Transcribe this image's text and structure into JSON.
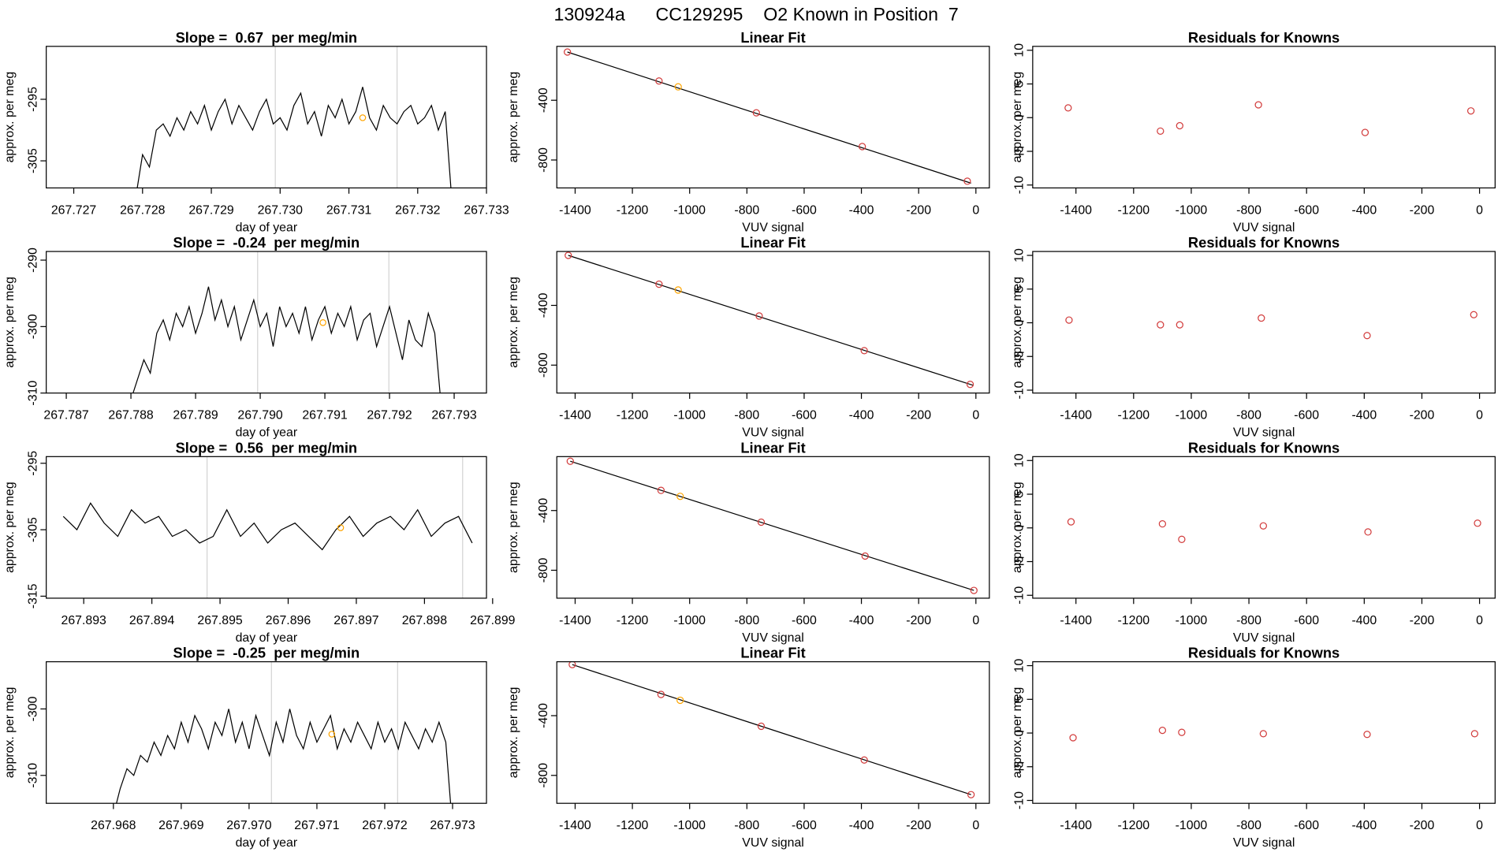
{
  "title": "130924a      CC129295    O2 Known in Position  7",
  "chart_data": [
    {
      "type": "line",
      "title": "Slope =  0.67  per meg/min",
      "xlabel": "day of year",
      "ylabel": "approx. per meg",
      "x": [
        267.7279,
        267.728,
        267.7281,
        267.7282,
        267.7283,
        267.7284,
        267.7285,
        267.7286,
        267.7287,
        267.7288,
        267.7289,
        267.729,
        267.7291,
        267.7292,
        267.7293,
        267.7294,
        267.7295,
        267.7296,
        267.7297,
        267.7298,
        267.7299,
        267.73,
        267.7301,
        267.7302,
        267.7303,
        267.7304,
        267.7305,
        267.7306,
        267.7307,
        267.7308,
        267.7309,
        267.731,
        267.7311,
        267.7312,
        267.7313,
        267.7314,
        267.7315,
        267.7316,
        267.7317,
        267.7318,
        267.7319,
        267.732,
        267.7321,
        267.7322,
        267.7323,
        267.7324,
        267.7325
      ],
      "values": [
        -311,
        -304,
        -306,
        -300,
        -299,
        -301,
        -298,
        -300,
        -297,
        -299,
        -296,
        -300,
        -297,
        -295,
        -299,
        -296,
        -298,
        -300,
        -297,
        -295,
        -299,
        -298,
        -300,
        -296,
        -294,
        -299,
        -297,
        -301,
        -296,
        -298,
        -295,
        -299,
        -297,
        -293,
        -298,
        -300,
        -296,
        -298,
        -299,
        -297,
        -296,
        -299,
        -298,
        -296,
        -300,
        -297,
        -312
      ],
      "color": "#000000",
      "xlim": [
        267.7266,
        267.733
      ],
      "ylim": [
        -309.4,
        -286.4
      ],
      "xticks": [
        267.727,
        267.728,
        267.729,
        {
          "value": 267.73,
          "label": "267.730"
        },
        267.731,
        267.732,
        267.733
      ],
      "yticks": [
        -305,
        -295
      ],
      "vlines": [
        267.72993,
        267.7317
      ],
      "vline_color": "#d3d3d3",
      "highlight": {
        "x": 267.7312,
        "value": -298,
        "color": "#ffa500"
      }
    },
    {
      "type": "scatter",
      "title": "Linear Fit",
      "xlabel": "VUV signal",
      "ylabel": "approx. per meg",
      "x": [
        -1427,
        -1107,
        -1040,
        -767,
        -397,
        -30
      ],
      "values": [
        -77,
        -271,
        -310,
        -484,
        -710,
        -942
      ],
      "colors": [
        "#d23c3c",
        "#d23c3c",
        "#ffa500",
        "#d23c3c",
        "#d23c3c",
        "#d23c3c"
      ],
      "fit": {
        "x": [
          -1427,
          -17
        ],
        "values": [
          -77,
          -955
        ]
      },
      "xlim": [
        -1464,
        47
      ],
      "ylim": [
        -987,
        -39
      ],
      "xticks": [
        -1400,
        -1200,
        -1000,
        -800,
        -600,
        -400,
        -200,
        0
      ],
      "yticks": [
        -800,
        -400
      ]
    },
    {
      "type": "scatter",
      "title": "Residuals for Knowns",
      "xlabel": "VUV signal",
      "ylabel": "approx. per meg",
      "x": [
        -1427,
        -1107,
        -1040,
        -767,
        -397,
        -30
      ],
      "values": [
        1.45,
        -2.0,
        -1.2,
        1.9,
        -2.2,
        1.0
      ],
      "colors": [
        "#d23c3c",
        "#d23c3c",
        "#d23c3c",
        "#d23c3c",
        "#d23c3c",
        "#d23c3c"
      ],
      "xlim": [
        -1550,
        54
      ],
      "ylim": [
        -10.43,
        10.58
      ],
      "xticks": [
        -1400,
        -1200,
        -1000,
        -800,
        -600,
        -400,
        -200,
        0
      ],
      "yticks": [
        -10,
        -5,
        0,
        5,
        10
      ]
    },
    {
      "type": "line",
      "title": "Slope =  -0.24  per meg/min",
      "xlabel": "day of year",
      "ylabel": "approx. per meg",
      "x": [
        267.788,
        267.7881,
        267.7882,
        267.7883,
        267.7884,
        267.7885,
        267.7886,
        267.7887,
        267.7888,
        267.7889,
        267.789,
        267.7891,
        267.7892,
        267.7893,
        267.7894,
        267.7895,
        267.7896,
        267.7897,
        267.7898,
        267.7899,
        267.79,
        267.7901,
        267.7902,
        267.7903,
        267.7904,
        267.7905,
        267.7906,
        267.7907,
        267.7908,
        267.7909,
        267.791,
        267.7911,
        267.7912,
        267.7913,
        267.7914,
        267.7915,
        267.7916,
        267.7917,
        267.7918,
        267.7919,
        267.792,
        267.7921,
        267.7922,
        267.7923,
        267.7924,
        267.7925,
        267.7926,
        267.7927,
        267.7928
      ],
      "values": [
        -311,
        -308,
        -305,
        -307,
        -301,
        -299,
        -302,
        -298,
        -300,
        -297,
        -301,
        -298,
        -294,
        -299,
        -296,
        -300,
        -297,
        -302,
        -299,
        -296,
        -300,
        -298,
        -303,
        -297,
        -300,
        -298,
        -301,
        -297,
        -302,
        -299,
        -297,
        -301,
        -298,
        -300,
        -297,
        -302,
        -299,
        -298,
        -303,
        -300,
        -297,
        -301,
        -305,
        -299,
        -302,
        -303,
        -298,
        -301,
        -312
      ],
      "color": "#000000",
      "xlim": [
        267.78669,
        267.7935
      ],
      "ylim": [
        -310,
        -288.7
      ],
      "xticks": [
        267.787,
        267.788,
        267.789,
        {
          "value": 267.79,
          "label": "267.790"
        },
        267.791,
        267.792,
        267.793
      ],
      "yticks": [
        -310,
        -300,
        -290
      ],
      "vlines": [
        267.78996,
        267.79199
      ],
      "vline_color": "#d3d3d3",
      "highlight": {
        "x": 267.79097,
        "value": -299.4,
        "color": "#ffa500"
      }
    },
    {
      "type": "scatter",
      "title": "Linear Fit",
      "xlabel": "VUV signal",
      "ylabel": "approx. per meg",
      "x": [
        -1424,
        -1107,
        -1040,
        -757,
        -390,
        -20
      ],
      "values": [
        -65,
        -258,
        -297,
        -471,
        -703,
        -929
      ],
      "colors": [
        "#d23c3c",
        "#d23c3c",
        "#ffa500",
        "#d23c3c",
        "#d23c3c",
        "#d23c3c"
      ],
      "fit": {
        "x": [
          -1424,
          -10
        ],
        "values": [
          -65,
          -935
        ]
      },
      "xlim": [
        -1464,
        47
      ],
      "ylim": [
        -987,
        -39
      ],
      "xticks": [
        -1400,
        -1200,
        -1000,
        -800,
        -600,
        -400,
        -200,
        0
      ],
      "yticks": [
        -800,
        -400
      ]
    },
    {
      "type": "scatter",
      "title": "Residuals for Knowns",
      "xlabel": "VUV signal",
      "ylabel": "approx. per meg",
      "x": [
        -1424,
        -1107,
        -1040,
        -757,
        -390,
        -20
      ],
      "values": [
        0.4,
        -0.3,
        -0.3,
        0.7,
        -1.9,
        1.2
      ],
      "colors": [
        "#d23c3c",
        "#d23c3c",
        "#d23c3c",
        "#d23c3c",
        "#d23c3c",
        "#d23c3c"
      ],
      "xlim": [
        -1550,
        54
      ],
      "ylim": [
        -10.43,
        10.58
      ],
      "xticks": [
        -1400,
        -1200,
        -1000,
        -800,
        -600,
        -400,
        -200,
        0
      ],
      "yticks": [
        -10,
        -5,
        0,
        5,
        10
      ]
    },
    {
      "type": "line",
      "title": "Slope =  0.56  per meg/min",
      "xlabel": "day of year",
      "ylabel": "approx. per meg",
      "x": [
        267.8927,
        267.8929,
        267.8931,
        267.8933,
        267.8935,
        267.8937,
        267.8939,
        267.8941,
        267.8943,
        267.8945,
        267.8947,
        267.8949,
        267.8951,
        267.8953,
        267.8955,
        267.8957,
        267.8959,
        267.8961,
        267.8963,
        267.8965,
        267.8967,
        267.8969,
        267.8971,
        267.8973,
        267.8975,
        267.8977,
        267.8979,
        267.8981,
        267.8983,
        267.8985,
        267.8987
      ],
      "values": [
        -303,
        -305,
        -301,
        -304,
        -306,
        -302,
        -304,
        -303,
        -306,
        -305,
        -307,
        -306,
        -302,
        -306,
        -304,
        -307,
        -305,
        -304,
        -306,
        -308,
        -305,
        -303,
        -306,
        -304,
        -303,
        -305,
        -302,
        -306,
        -304,
        -303,
        -307
      ],
      "color": "#000000",
      "xlim": [
        267.89245,
        267.89891
      ],
      "ylim": [
        -315.3,
        -294
      ],
      "xticks": [
        267.893,
        267.894,
        267.895,
        267.896,
        267.897,
        267.898,
        267.899
      ],
      "yticks": [
        -315,
        -305,
        -295
      ],
      "vlines": [
        267.89481,
        267.89856
      ],
      "vline_color": "#d3d3d3",
      "highlight": {
        "x": 267.89677,
        "value": -304.7,
        "color": "#ffa500"
      }
    },
    {
      "type": "scatter",
      "title": "Linear Fit",
      "xlabel": "VUV signal",
      "ylabel": "approx. per meg",
      "x": [
        -1417,
        -1100,
        -1033,
        -750,
        -387,
        -7
      ],
      "values": [
        -70,
        -265,
        -305,
        -478,
        -705,
        -935
      ],
      "colors": [
        "#d23c3c",
        "#d23c3c",
        "#ffa500",
        "#d23c3c",
        "#d23c3c",
        "#d23c3c"
      ],
      "fit": {
        "x": [
          -1417,
          -7
        ],
        "values": [
          -70,
          -935
        ]
      },
      "xlim": [
        -1464,
        47
      ],
      "ylim": [
        -987,
        -39
      ],
      "xticks": [
        -1400,
        -1200,
        -1000,
        -800,
        -600,
        -400,
        -200,
        0
      ],
      "yticks": [
        -800,
        -400
      ]
    },
    {
      "type": "scatter",
      "title": "Residuals for Knowns",
      "xlabel": "VUV signal",
      "ylabel": "approx. per meg",
      "x": [
        -1417,
        -1100,
        -1033,
        -750,
        -387,
        -7
      ],
      "values": [
        0.9,
        0.6,
        -1.7,
        0.3,
        -0.6,
        0.7
      ],
      "colors": [
        "#d23c3c",
        "#d23c3c",
        "#d23c3c",
        "#d23c3c",
        "#d23c3c",
        "#d23c3c"
      ],
      "xlim": [
        -1550,
        54
      ],
      "ylim": [
        -10.43,
        10.58
      ],
      "xticks": [
        -1400,
        -1200,
        -1000,
        -800,
        -600,
        -400,
        -200,
        0
      ],
      "yticks": [
        -10,
        -5,
        0,
        5,
        10
      ]
    },
    {
      "type": "line",
      "title": "Slope =  -0.25  per meg/min",
      "xlabel": "day of year",
      "ylabel": "approx. per meg",
      "x": [
        267.968,
        267.9681,
        267.9682,
        267.9683,
        267.9684,
        267.9685,
        267.9686,
        267.9687,
        267.9688,
        267.9689,
        267.969,
        267.9691,
        267.9692,
        267.9693,
        267.9694,
        267.9695,
        267.9696,
        267.9697,
        267.9698,
        267.9699,
        267.97,
        267.9701,
        267.9702,
        267.9703,
        267.9704,
        267.9705,
        267.9706,
        267.9707,
        267.9708,
        267.9709,
        267.971,
        267.9711,
        267.9712,
        267.9713,
        267.9714,
        267.9715,
        267.9716,
        267.9717,
        267.9718,
        267.9719,
        267.972,
        267.9721,
        267.9722,
        267.9723,
        267.9724,
        267.9725,
        267.9726,
        267.9727,
        267.9728,
        267.9729,
        267.973
      ],
      "values": [
        -316,
        -312,
        -309,
        -310,
        -307,
        -308,
        -305,
        -307,
        -304,
        -306,
        -302,
        -305,
        -301,
        -303,
        -306,
        -302,
        -304,
        -300,
        -305,
        -302,
        -306,
        -301,
        -304,
        -307,
        -302,
        -305,
        -300,
        -304,
        -306,
        -302,
        -305,
        -303,
        -301,
        -306,
        -303,
        -305,
        -302,
        -304,
        -306,
        -302,
        -305,
        -303,
        -306,
        -302,
        -304,
        -306,
        -303,
        -305,
        -302,
        -305,
        -318
      ],
      "color": "#000000",
      "xlim": [
        267.96701,
        267.9735
      ],
      "ylim": [
        -314.2,
        -292.9
      ],
      "xticks": [
        267.968,
        267.969,
        {
          "value": 267.97,
          "label": "267.970"
        },
        267.971,
        267.972,
        267.973
      ],
      "yticks": [
        -310,
        -300
      ],
      "vlines": [
        267.97033,
        267.97219
      ],
      "vline_color": "#d3d3d3",
      "highlight": {
        "x": 267.97122,
        "value": -303.8,
        "color": "#ffa500"
      }
    },
    {
      "type": "scatter",
      "title": "Linear Fit",
      "xlabel": "VUV signal",
      "ylabel": "approx. per meg",
      "x": [
        -1410,
        -1100,
        -1033,
        -750,
        -390,
        -17
      ],
      "values": [
        -58,
        -258,
        -297,
        -471,
        -697,
        -929
      ],
      "colors": [
        "#d23c3c",
        "#d23c3c",
        "#ffa500",
        "#d23c3c",
        "#d23c3c",
        "#d23c3c"
      ],
      "fit": {
        "x": [
          -1410,
          -17
        ],
        "values": [
          -58,
          -929
        ]
      },
      "xlim": [
        -1464,
        47
      ],
      "ylim": [
        -987,
        -39
      ],
      "xticks": [
        -1400,
        -1200,
        -1000,
        -800,
        -600,
        -400,
        -200,
        0
      ],
      "yticks": [
        -800,
        -400
      ]
    },
    {
      "type": "scatter",
      "title": "Residuals for Knowns",
      "xlabel": "VUV signal",
      "ylabel": "approx. per meg",
      "x": [
        -1410,
        -1100,
        -1033,
        -750,
        -390,
        -17
      ],
      "values": [
        -0.7,
        0.4,
        0.1,
        -0.1,
        -0.2,
        -0.1
      ],
      "colors": [
        "#d23c3c",
        "#d23c3c",
        "#d23c3c",
        "#d23c3c",
        "#d23c3c",
        "#d23c3c"
      ],
      "xlim": [
        -1550,
        54
      ],
      "ylim": [
        -10.43,
        10.58
      ],
      "xticks": [
        -1400,
        -1200,
        -1000,
        -800,
        -600,
        -400,
        -200,
        0
      ],
      "yticks": [
        -10,
        -5,
        0,
        5,
        10
      ]
    }
  ]
}
